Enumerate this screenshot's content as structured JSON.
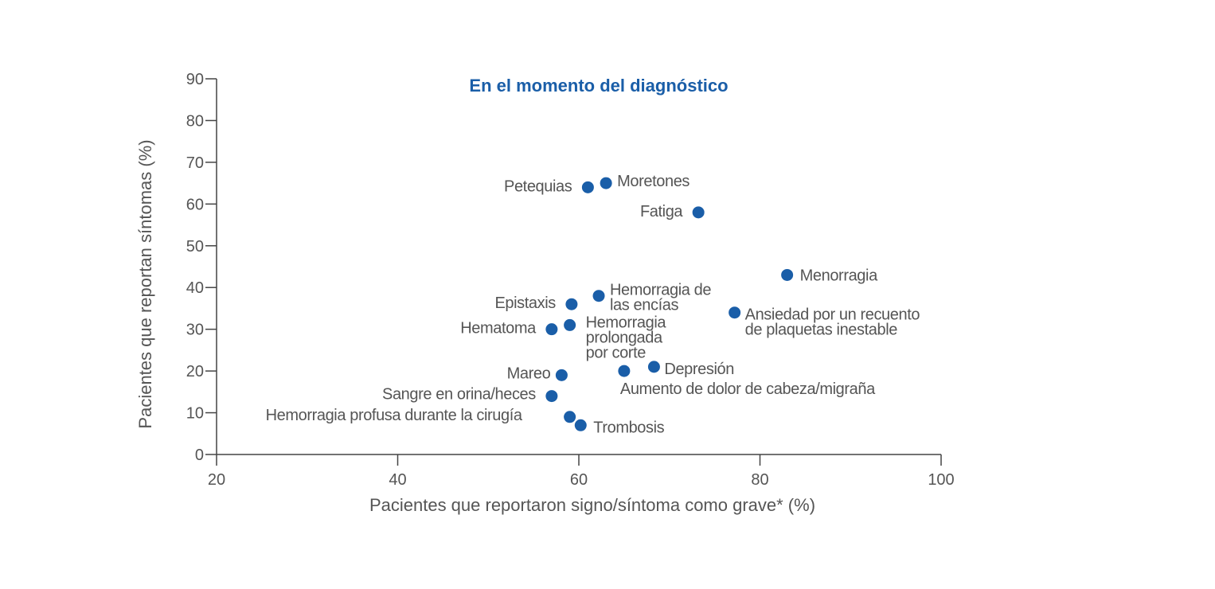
{
  "chart_data": {
    "type": "scatter",
    "title": "En el momento del diagnóstico",
    "xlabel": "Pacientes que reportaron signo/síntoma como grave* (%)",
    "ylabel": "Pacientes que reportan síntomas (%)",
    "xlim": [
      20,
      100
    ],
    "ylim": [
      0,
      90
    ],
    "xticks": [
      20,
      40,
      60,
      80,
      100
    ],
    "yticks": [
      0,
      10,
      20,
      30,
      40,
      50,
      60,
      70,
      80,
      90
    ],
    "grid": false,
    "point_color": "#1a5ea8",
    "title_color": "#1a5ea8",
    "points": [
      {
        "name": [
          "Petequias"
        ],
        "x": 61,
        "y": 64
      },
      {
        "name": [
          "Moretones"
        ],
        "x": 63,
        "y": 65
      },
      {
        "name": [
          "Fatiga"
        ],
        "x": 73.2,
        "y": 58
      },
      {
        "name": [
          "Menorragia"
        ],
        "x": 83,
        "y": 43
      },
      {
        "name": [
          "Hemorragia de",
          "las encías"
        ],
        "x": 62.2,
        "y": 38
      },
      {
        "name": [
          "Epistaxis"
        ],
        "x": 59.2,
        "y": 36
      },
      {
        "name": [
          "Ansiedad por un recuento",
          "de plaquetas inestable"
        ],
        "x": 77.2,
        "y": 34
      },
      {
        "name": [
          "Hemorragia",
          "prolongada",
          "por corte"
        ],
        "x": 59,
        "y": 31
      },
      {
        "name": [
          "Hematoma"
        ],
        "x": 57,
        "y": 30
      },
      {
        "name": [
          "Depresión"
        ],
        "x": 68.3,
        "y": 21
      },
      {
        "name": [
          "Aumento de dolor de cabeza/migraña"
        ],
        "x": 65,
        "y": 20
      },
      {
        "name": [
          "Mareo"
        ],
        "x": 58.1,
        "y": 19
      },
      {
        "name": [
          "Sangre en orina/heces"
        ],
        "x": 57,
        "y": 14
      },
      {
        "name": [
          "Hemorragia profusa durante la cirugía"
        ],
        "x": 59,
        "y": 9
      },
      {
        "name": [
          "Trombosis"
        ],
        "x": 60.2,
        "y": 7
      }
    ]
  }
}
